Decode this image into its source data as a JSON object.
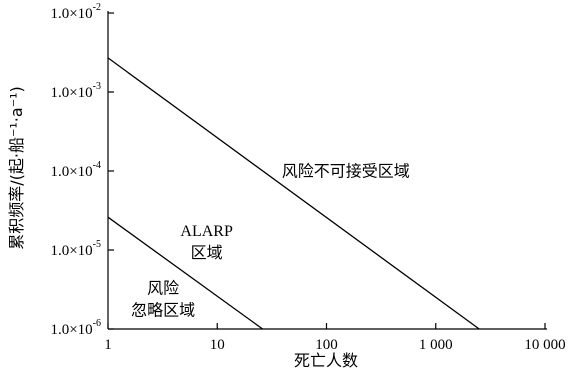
{
  "chart_data": {
    "type": "line",
    "xscale": "log",
    "yscale": "log",
    "xlabel": "死亡人数",
    "ylabel": "累积频率/(起·船⁻¹·a⁻¹)",
    "xlim": [
      1,
      10000
    ],
    "ylim": [
      1e-06,
      0.01
    ],
    "xticks": [
      {
        "value": 1,
        "label": "1"
      },
      {
        "value": 10,
        "label": "10"
      },
      {
        "value": 100,
        "label": "100"
      },
      {
        "value": 1000,
        "label": "1 000"
      },
      {
        "value": 10000,
        "label": "10 000"
      }
    ],
    "yticks": [
      {
        "value": 1e-06,
        "mant": "1.0×10",
        "exp": "-6"
      },
      {
        "value": 1e-05,
        "mant": "1.0×10",
        "exp": "-5"
      },
      {
        "value": 0.0001,
        "mant": "1.0×10",
        "exp": "-4"
      },
      {
        "value": 0.001,
        "mant": "1.0×10",
        "exp": "-3"
      },
      {
        "value": 0.01,
        "mant": "1.0×10",
        "exp": "-2"
      }
    ],
    "series": [
      {
        "x": [
          1,
          2500
        ],
        "y": [
          0.0027,
          1e-06
        ]
      },
      {
        "x": [
          1,
          26
        ],
        "y": [
          2.6e-05,
          1e-06
        ]
      }
    ],
    "regions": [
      {
        "lines": [
          "风险不可接受区域"
        ],
        "x": 150,
        "y": 8.5e-05
      },
      {
        "lines": [
          "ALARP",
          "区域"
        ],
        "x": 8,
        "y": 1.5e-05
      },
      {
        "lines": [
          "风险",
          "忽略区域"
        ],
        "x": 3.2,
        "y": 2.8e-06
      }
    ]
  }
}
